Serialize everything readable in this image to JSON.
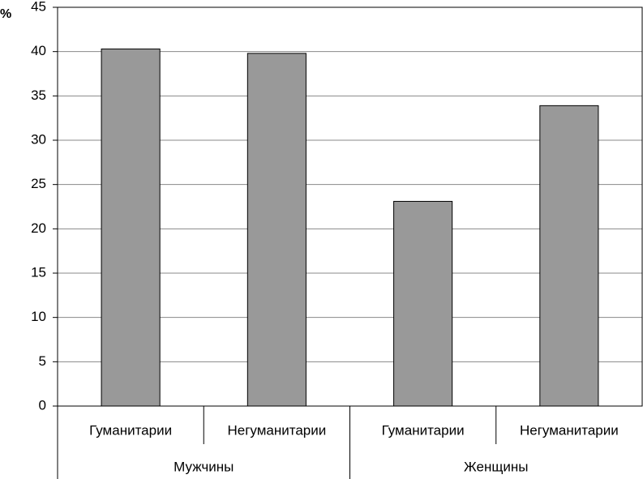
{
  "chart_data": {
    "type": "bar",
    "y_label": "%",
    "categories": [
      "Гуманитарии",
      "Негуманитарии",
      "Гуманитарии",
      "Негуманитарии"
    ],
    "groups": [
      "Мужчины",
      "Женщины"
    ],
    "values": [
      40.3,
      39.8,
      23.1,
      33.9
    ],
    "color": "#999999",
    "ylim": [
      0,
      45
    ],
    "yticks": [
      0,
      5,
      10,
      15,
      20,
      25,
      30,
      35,
      40,
      45
    ],
    "grid": true
  }
}
